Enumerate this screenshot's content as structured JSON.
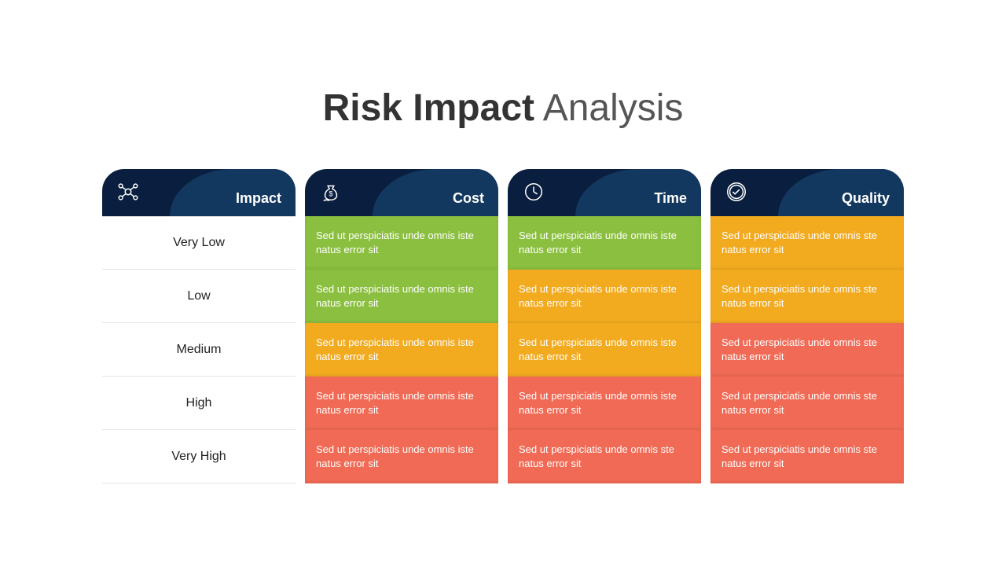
{
  "title": {
    "bold": "Risk Impact",
    "light": " Analysis"
  },
  "colors": {
    "header_dark": "#0a1e3f",
    "header_mid": "#13385f",
    "green": "#8bbf3f",
    "amber": "#f2aa1f",
    "coral": "#f06a55",
    "white": "#ffffff",
    "text_dark": "#222222",
    "grid": "#e5e5e5"
  },
  "impact_levels": [
    "Very Low",
    "Low",
    "Medium",
    "High",
    "Very High"
  ],
  "columns": [
    {
      "key": "impact",
      "label": "Impact",
      "icon": "network",
      "kind": "labels"
    },
    {
      "key": "cost",
      "label": "Cost",
      "icon": "moneybag",
      "kind": "data",
      "cells": [
        {
          "text": "Sed ut perspiciatis unde omnis iste natus error sit",
          "bg": "#8bbf3f"
        },
        {
          "text": "Sed ut perspiciatis unde omnis iste natus error sit",
          "bg": "#8bbf3f"
        },
        {
          "text": "Sed ut perspiciatis unde omnis iste natus error sit",
          "bg": "#f2aa1f"
        },
        {
          "text": "Sed ut perspiciatis unde omnis iste natus error sit",
          "bg": "#f06a55"
        },
        {
          "text": "Sed ut perspiciatis unde omnis iste natus error sit",
          "bg": "#f06a55"
        }
      ]
    },
    {
      "key": "time",
      "label": "Time",
      "icon": "clock",
      "kind": "data",
      "cells": [
        {
          "text": "Sed ut perspiciatis unde omnis  iste natus error sit",
          "bg": "#8bbf3f"
        },
        {
          "text": "Sed ut perspiciatis unde omnis  iste natus error sit",
          "bg": "#f2aa1f"
        },
        {
          "text": "Sed ut perspiciatis unde omnis  iste natus error sit",
          "bg": "#f2aa1f"
        },
        {
          "text": "Sed ut perspiciatis unde omnis  iste natus error sit",
          "bg": "#f06a55"
        },
        {
          "text": "Sed ut perspiciatis unde omnis  ste natus error sit",
          "bg": "#f06a55"
        }
      ]
    },
    {
      "key": "quality",
      "label": "Quality",
      "icon": "badge",
      "kind": "data",
      "cells": [
        {
          "text": "Sed ut perspiciatis unde omnis ste natus error sit",
          "bg": "#f2aa1f"
        },
        {
          "text": "Sed ut perspiciatis unde omnis ste natus error sit",
          "bg": "#f2aa1f"
        },
        {
          "text": "Sed ut perspiciatis unde omnis ste natus error sit",
          "bg": "#f06a55"
        },
        {
          "text": "Sed ut perspiciatis unde omnis ste natus error sit",
          "bg": "#f06a55"
        },
        {
          "text": "Sed ut perspiciatis unde omnis ste natus error sit",
          "bg": "#f06a55"
        }
      ]
    }
  ]
}
